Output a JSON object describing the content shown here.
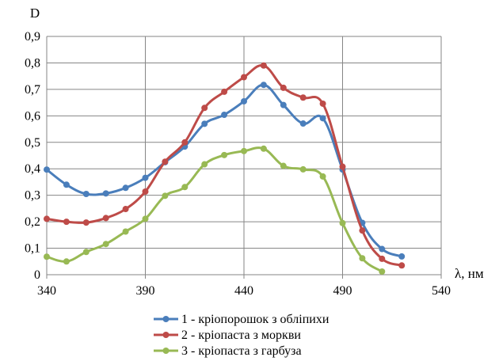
{
  "chart_data": {
    "type": "line",
    "ylabel": "D",
    "xlabel": "λ, нм",
    "xlim": [
      340,
      540
    ],
    "ylim": [
      0,
      0.9
    ],
    "xticks": [
      "340",
      "390",
      "440",
      "490",
      "540"
    ],
    "yticks": [
      "0",
      "0,1",
      "0,2",
      "0,3",
      "0,4",
      "0,5",
      "0,6",
      "0,7",
      "0,8",
      "0,9"
    ],
    "grid": true,
    "legend_position": "bottom",
    "series": [
      {
        "name": "1 - кріопорошок з обліпихи",
        "color": "#4A7EBB",
        "x": [
          340,
          350,
          360,
          370,
          380,
          390,
          400,
          410,
          420,
          430,
          440,
          450,
          460,
          470,
          480,
          490,
          500,
          510,
          520
        ],
        "y": [
          0.397,
          0.34,
          0.305,
          0.307,
          0.328,
          0.366,
          0.425,
          0.484,
          0.57,
          0.604,
          0.655,
          0.717,
          0.641,
          0.571,
          0.591,
          0.397,
          0.196,
          0.097,
          0.069
        ]
      },
      {
        "name": "2 - кріопаста з моркви",
        "color": "#BE4B48",
        "x": [
          340,
          350,
          360,
          370,
          380,
          390,
          400,
          410,
          420,
          430,
          440,
          450,
          460,
          470,
          480,
          490,
          500,
          510,
          520
        ],
        "y": [
          0.211,
          0.2,
          0.197,
          0.214,
          0.248,
          0.314,
          0.427,
          0.5,
          0.63,
          0.691,
          0.746,
          0.79,
          0.706,
          0.669,
          0.646,
          0.408,
          0.167,
          0.06,
          0.035
        ]
      },
      {
        "name": "3 - кріопаста з гарбуза",
        "color": "#98B954",
        "x": [
          340,
          350,
          360,
          370,
          380,
          390,
          400,
          410,
          420,
          430,
          440,
          450,
          460,
          470,
          480,
          490,
          500,
          510
        ],
        "y": [
          0.068,
          0.05,
          0.086,
          0.116,
          0.163,
          0.211,
          0.298,
          0.331,
          0.417,
          0.452,
          0.467,
          0.476,
          0.411,
          0.398,
          0.371,
          0.195,
          0.062,
          0.012
        ]
      }
    ]
  }
}
